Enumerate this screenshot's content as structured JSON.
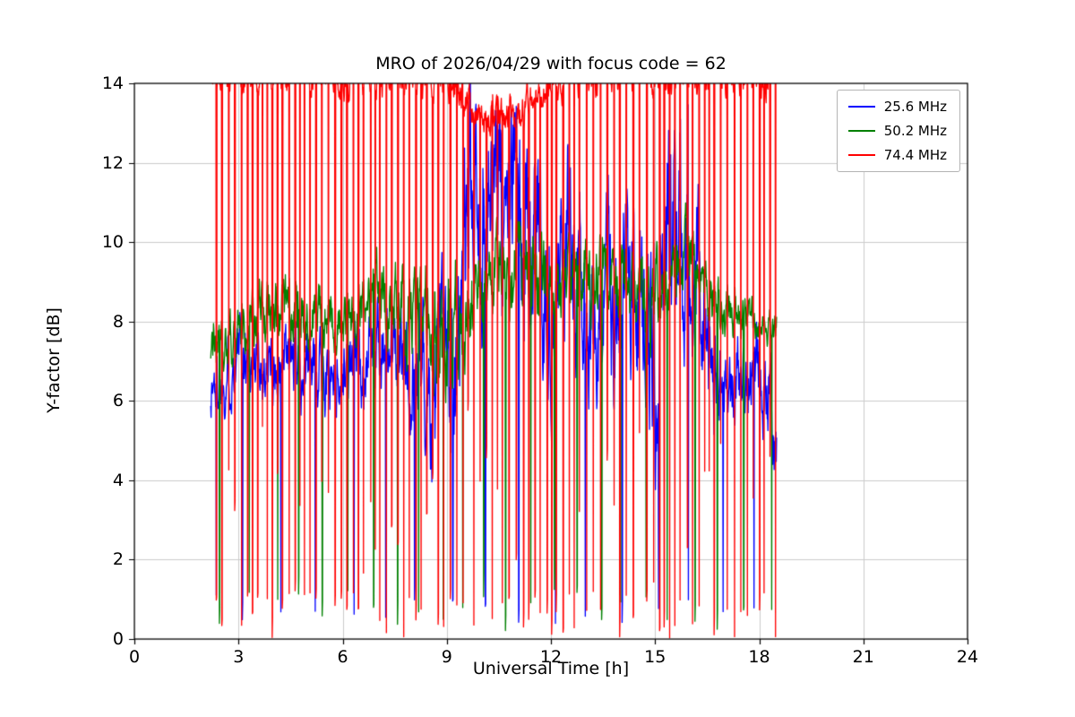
{
  "chart_data": {
    "type": "line",
    "title": "MRO of 2026/04/29 with focus code = 62",
    "xlabel": "Universal Time [h]",
    "ylabel": "Y-factor [dB]",
    "xlim": [
      0,
      24
    ],
    "ylim": [
      0,
      14
    ],
    "xticks": [
      0,
      3,
      6,
      9,
      12,
      15,
      18,
      21,
      24
    ],
    "yticks": [
      0,
      2,
      4,
      6,
      8,
      10,
      12,
      14
    ],
    "grid": true,
    "grid_color": "#cccccc",
    "background": "#ffffff",
    "legend_position": "upper right",
    "x_start": 2.2,
    "x_end": 18.5,
    "seed": 1337,
    "series": [
      {
        "name": "25.6 MHz",
        "color": "#0000ff",
        "profile_x": [
          2.2,
          3.0,
          4.0,
          5.0,
          6.0,
          7.0,
          8.0,
          9.0,
          9.5,
          10.0,
          11.0,
          12.0,
          12.5,
          13.0,
          14.0,
          15.0,
          15.5,
          16.0,
          16.5,
          17.0,
          18.0,
          18.5
        ],
        "profile_mean": [
          6.3,
          7.2,
          6.8,
          7.0,
          6.6,
          7.4,
          6.8,
          6.5,
          9.0,
          11.0,
          11.0,
          9.0,
          10.5,
          8.0,
          8.5,
          8.0,
          10.5,
          11.0,
          8.0,
          6.5,
          7.0,
          5.0
        ],
        "profile_amp": [
          1.1,
          1.0,
          1.0,
          1.1,
          1.0,
          1.2,
          1.6,
          2.5,
          3.0,
          3.0,
          3.0,
          2.5,
          2.5,
          2.0,
          2.5,
          3.0,
          3.0,
          3.0,
          2.0,
          1.0,
          1.2,
          1.2
        ],
        "noise_scale": 2.2,
        "dip_period": 0.9,
        "dip_min": 0.3,
        "dip_max": 1.2,
        "dip_extra_prob": 0.0,
        "dip_extra": 0.0
      },
      {
        "name": "50.2 MHz",
        "color": "#008000",
        "profile_x": [
          2.2,
          3.0,
          4.0,
          5.0,
          6.0,
          7.0,
          8.0,
          9.0,
          10.0,
          11.0,
          12.0,
          13.0,
          14.0,
          15.0,
          16.0,
          17.0,
          18.0,
          18.5
        ],
        "profile_mean": [
          7.3,
          8.0,
          8.5,
          8.3,
          7.9,
          8.6,
          8.3,
          7.6,
          9.3,
          9.5,
          9.2,
          9.0,
          9.3,
          8.6,
          9.8,
          8.2,
          8.1,
          7.9
        ],
        "profile_amp": [
          0.9,
          0.9,
          1.0,
          1.0,
          0.8,
          1.2,
          1.2,
          1.8,
          1.2,
          1.2,
          1.2,
          1.2,
          1.0,
          1.3,
          1.0,
          0.7,
          0.6,
          0.5
        ],
        "noise_scale": 2.0,
        "dip_period": 0.7,
        "dip_min": 0.2,
        "dip_max": 1.3,
        "dip_extra_prob": 0.0,
        "dip_extra": 0.0
      },
      {
        "name": "74.4 MHz",
        "color": "#ff0000",
        "profile_x": [
          2.2,
          9.0,
          9.8,
          10.8,
          11.5,
          12.2,
          18.5
        ],
        "profile_mean": [
          14.3,
          14.3,
          13.3,
          13.2,
          13.6,
          14.3,
          14.3
        ],
        "profile_amp": [
          0.8,
          0.8,
          0.7,
          0.7,
          0.7,
          0.8,
          0.8
        ],
        "noise_scale": 1.6,
        "dip_period": 0.17,
        "dip_min": 0.0,
        "dip_max": 1.2,
        "dip_extra_prob": 0.35,
        "dip_extra": 5.5
      }
    ]
  }
}
